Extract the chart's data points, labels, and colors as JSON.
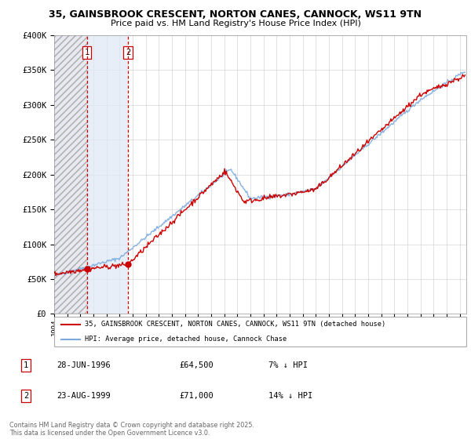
{
  "title1": "35, GAINSBROOK CRESCENT, NORTON CANES, CANNOCK, WS11 9TN",
  "title2": "Price paid vs. HM Land Registry's House Price Index (HPI)",
  "xmin": 1994.0,
  "xmax": 2025.5,
  "ymin": 0,
  "ymax": 400000,
  "yticks": [
    0,
    50000,
    100000,
    150000,
    200000,
    250000,
    300000,
    350000,
    400000
  ],
  "ytick_labels": [
    "£0",
    "£50K",
    "£100K",
    "£150K",
    "£200K",
    "£250K",
    "£300K",
    "£350K",
    "£400K"
  ],
  "sale1_date": 1996.49,
  "sale1_price": 64500,
  "sale2_date": 1999.64,
  "sale2_price": 71000,
  "legend_line1": "35, GAINSBROOK CRESCENT, NORTON CANES, CANNOCK, WS11 9TN (detached house)",
  "legend_line2": "HPI: Average price, detached house, Cannock Chase",
  "table_row1": [
    "1",
    "28-JUN-1996",
    "£64,500",
    "7% ↓ HPI"
  ],
  "table_row2": [
    "2",
    "23-AUG-1999",
    "£71,000",
    "14% ↓ HPI"
  ],
  "footnote": "Contains HM Land Registry data © Crown copyright and database right 2025.\nThis data is licensed under the Open Government Licence v3.0.",
  "hpi_color": "#7aaadd",
  "price_color": "#cc0000",
  "vline_color": "#cc0000",
  "grid_color": "#cccccc",
  "hatch_color": "#bbbbcc",
  "between_color": "#dde8f5"
}
